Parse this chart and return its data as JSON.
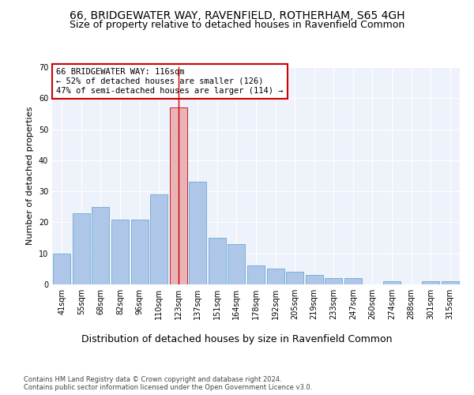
{
  "title1": "66, BRIDGEWATER WAY, RAVENFIELD, ROTHERHAM, S65 4GH",
  "title2": "Size of property relative to detached houses in Ravenfield Common",
  "xlabel": "Distribution of detached houses by size in Ravenfield Common",
  "ylabel": "Number of detached properties",
  "categories": [
    "41sqm",
    "55sqm",
    "68sqm",
    "82sqm",
    "96sqm",
    "110sqm",
    "123sqm",
    "137sqm",
    "151sqm",
    "164sqm",
    "178sqm",
    "192sqm",
    "205sqm",
    "219sqm",
    "233sqm",
    "247sqm",
    "260sqm",
    "274sqm",
    "288sqm",
    "301sqm",
    "315sqm"
  ],
  "values": [
    10,
    23,
    25,
    21,
    21,
    29,
    57,
    33,
    15,
    13,
    6,
    5,
    4,
    3,
    2,
    2,
    0,
    1,
    0,
    1,
    1
  ],
  "bar_color": "#aec6e8",
  "bar_edge_color": "#6aaad4",
  "highlight_index": 6,
  "highlight_color": "#e8b4b8",
  "highlight_edge_color": "#cc0000",
  "vline_color": "#cc0000",
  "annotation_text": "66 BRIDGEWATER WAY: 116sqm\n← 52% of detached houses are smaller (126)\n47% of semi-detached houses are larger (114) →",
  "annotation_box_color": "#ffffff",
  "annotation_box_edge": "#cc0000",
  "ylim": [
    0,
    70
  ],
  "yticks": [
    0,
    10,
    20,
    30,
    40,
    50,
    60,
    70
  ],
  "background_color": "#eef2fa",
  "footer": "Contains HM Land Registry data © Crown copyright and database right 2024.\nContains public sector information licensed under the Open Government Licence v3.0.",
  "title1_fontsize": 10,
  "title2_fontsize": 9,
  "xlabel_fontsize": 9,
  "ylabel_fontsize": 8,
  "tick_fontsize": 7,
  "annotation_fontsize": 7.5,
  "footer_fontsize": 6
}
